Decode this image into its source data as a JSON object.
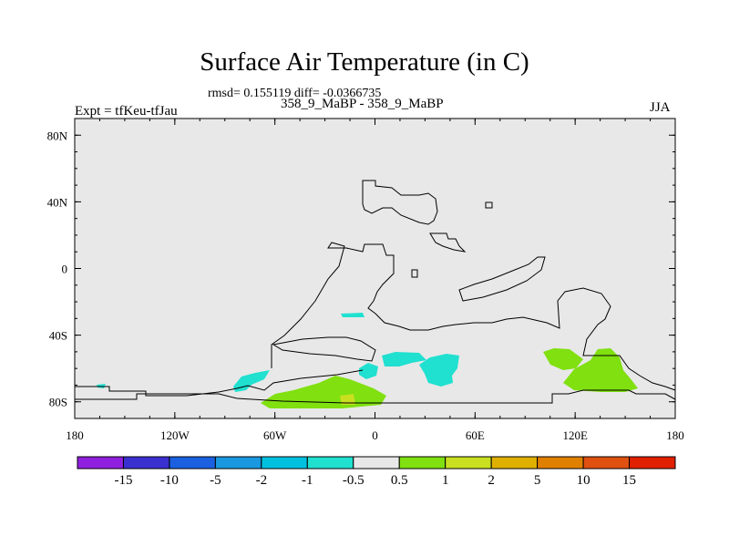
{
  "title": "Surface Air Temperature (in C)",
  "stats": "rmsd= 0.155119 diff= -0.0366735",
  "subtitle": "358_9_MaBP - 358_9_MaBP",
  "left_label": "Expt = tfKeu-tfJau",
  "right_label": "JJA",
  "map": {
    "lon_range": [
      -180,
      180
    ],
    "lat_range": [
      -90,
      90
    ],
    "lat_ticks": [
      {
        "value": 80,
        "label": "80N"
      },
      {
        "value": 40,
        "label": "40N"
      },
      {
        "value": 0,
        "label": "0"
      },
      {
        "value": -40,
        "label": "40S"
      },
      {
        "value": -80,
        "label": "80S"
      }
    ],
    "lon_ticks": [
      {
        "value": -180,
        "label": "180"
      },
      {
        "value": -120,
        "label": "120W"
      },
      {
        "value": -60,
        "label": "60W"
      },
      {
        "value": 0,
        "label": "0"
      },
      {
        "value": 60,
        "label": "60E"
      },
      {
        "value": 120,
        "label": "120E"
      },
      {
        "value": 180,
        "label": "180"
      }
    ],
    "background_color": "#e8e8e8"
  },
  "colorbar": {
    "colors": [
      "#9020e0",
      "#3a30d0",
      "#1a60e0",
      "#1a98e0",
      "#00c0e0",
      "#20e0d0",
      "#e8e8e8",
      "#80e010",
      "#c8e020",
      "#e0b000",
      "#e08000",
      "#e05010",
      "#e02000"
    ],
    "labels": [
      "-15",
      "-10",
      "-5",
      "-2",
      "-1",
      "-0.5",
      "0.5",
      "1",
      "2",
      "5",
      "10",
      "15"
    ]
  }
}
